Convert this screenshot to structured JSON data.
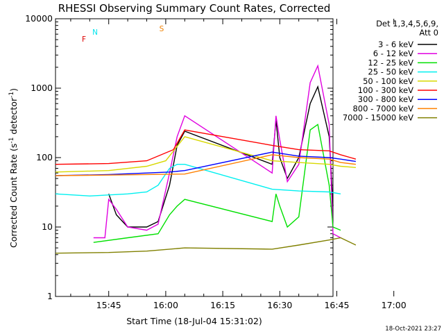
{
  "chart_data": {
    "type": "line",
    "title": "RHESSI Observing Summary Count Rates, Corrected",
    "xlabel": "Start Time (18-Jul-04 15:31:02)",
    "ylabel_main": "Corrected Count Rate (s",
    "ylabel_sup1": "-1",
    "ylabel_mid": " detector",
    "ylabel_sup2": "-1",
    "ylabel_end": ")",
    "yscale": "log",
    "ylim": [
      1,
      10000
    ],
    "y_ticks": [
      {
        "value": 1,
        "label": "1"
      },
      {
        "value": 10,
        "label": "10"
      },
      {
        "value": 100,
        "label": "100"
      },
      {
        "value": 1000,
        "label": "1000"
      },
      {
        "value": 10000,
        "label": "10000"
      }
    ],
    "xlim_min": [
      31.0,
      104.0
    ],
    "x_ticks": [
      {
        "value": 45,
        "label": "15:45"
      },
      {
        "value": 60,
        "label": "16:00"
      },
      {
        "value": 75,
        "label": "16:15"
      },
      {
        "value": 90,
        "label": "16:30"
      },
      {
        "value": 105,
        "label": "16:45"
      },
      {
        "value": 120,
        "label": "17:00"
      }
    ],
    "legend_header_1": "Det 1,3,4,5,6,9,",
    "legend_header_2": "Att 0",
    "legend_position": "right",
    "flags": [
      {
        "label": "N",
        "color": "#00e5ee"
      },
      {
        "label": "F",
        "color": "#dd0000"
      },
      {
        "label": "S",
        "color": "#f08000"
      }
    ],
    "series": [
      {
        "name": "3 - 6 keV",
        "color": "#000000",
        "points": [
          [
            45,
            30
          ],
          [
            47,
            15
          ],
          [
            50,
            10
          ],
          [
            55,
            10
          ],
          [
            58,
            12
          ],
          [
            61,
            40
          ],
          [
            63,
            150
          ],
          [
            65,
            240
          ],
          [
            88,
            80
          ],
          [
            89,
            350
          ],
          [
            90,
            100
          ],
          [
            92,
            50
          ],
          [
            95,
            100
          ],
          [
            98,
            600
          ],
          [
            100,
            1050
          ],
          [
            103,
            200
          ],
          [
            104,
            20
          ]
        ]
      },
      {
        "name": "6 - 12 keV",
        "color": "#e000e0",
        "points": [
          [
            41,
            7
          ],
          [
            44,
            7
          ],
          [
            45,
            25
          ],
          [
            47,
            18
          ],
          [
            50,
            10
          ],
          [
            55,
            9
          ],
          [
            58,
            11
          ],
          [
            61,
            60
          ],
          [
            63,
            200
          ],
          [
            65,
            400
          ],
          [
            88,
            60
          ],
          [
            89,
            400
          ],
          [
            90,
            180
          ],
          [
            92,
            45
          ],
          [
            95,
            80
          ],
          [
            98,
            1200
          ],
          [
            100,
            2100
          ],
          [
            103,
            300
          ],
          [
            104,
            8
          ],
          [
            106,
            7
          ]
        ]
      },
      {
        "name": "12 - 25 keV",
        "color": "#00e000",
        "points": [
          [
            41,
            6
          ],
          [
            50,
            7
          ],
          [
            58,
            8
          ],
          [
            61,
            15
          ],
          [
            63,
            20
          ],
          [
            65,
            25
          ],
          [
            88,
            12
          ],
          [
            89,
            30
          ],
          [
            90,
            20
          ],
          [
            92,
            10
          ],
          [
            95,
            14
          ],
          [
            98,
            250
          ],
          [
            100,
            300
          ],
          [
            103,
            40
          ],
          [
            104,
            10
          ],
          [
            106,
            9
          ]
        ]
      },
      {
        "name": "25 - 50 keV",
        "color": "#00f0f0",
        "points": [
          [
            31,
            30
          ],
          [
            40,
            28
          ],
          [
            50,
            30
          ],
          [
            55,
            32
          ],
          [
            58,
            40
          ],
          [
            61,
            70
          ],
          [
            63,
            80
          ],
          [
            65,
            80
          ],
          [
            88,
            35
          ],
          [
            95,
            33
          ],
          [
            103,
            32
          ],
          [
            106,
            30
          ]
        ]
      },
      {
        "name": "50 - 100 keV",
        "color": "#d8d800",
        "points": [
          [
            31,
            62
          ],
          [
            45,
            65
          ],
          [
            55,
            75
          ],
          [
            60,
            90
          ],
          [
            65,
            200
          ],
          [
            88,
            90
          ],
          [
            95,
            85
          ],
          [
            103,
            80
          ],
          [
            106,
            75
          ],
          [
            110,
            72
          ]
        ]
      },
      {
        "name": "100 - 300 keV",
        "color": "#ff0000",
        "points": [
          [
            31,
            80
          ],
          [
            45,
            82
          ],
          [
            55,
            90
          ],
          [
            62,
            130
          ],
          [
            65,
            250
          ],
          [
            88,
            150
          ],
          [
            95,
            130
          ],
          [
            103,
            125
          ],
          [
            106,
            110
          ],
          [
            110,
            95
          ]
        ]
      },
      {
        "name": "300 - 800 keV",
        "color": "#0000ff",
        "points": [
          [
            31,
            55
          ],
          [
            45,
            57
          ],
          [
            55,
            60
          ],
          [
            61,
            62
          ],
          [
            65,
            65
          ],
          [
            88,
            120
          ],
          [
            95,
            105
          ],
          [
            103,
            100
          ],
          [
            106,
            95
          ],
          [
            110,
            88
          ]
        ]
      },
      {
        "name": "800 - 7000 keV",
        "color": "#ff8000",
        "points": [
          [
            31,
            55
          ],
          [
            45,
            56
          ],
          [
            55,
            57
          ],
          [
            65,
            58
          ],
          [
            88,
            110
          ],
          [
            95,
            100
          ],
          [
            103,
            95
          ],
          [
            106,
            85
          ],
          [
            110,
            80
          ]
        ]
      },
      {
        "name": "7000 - 15000 keV",
        "color": "#808000",
        "points": [
          [
            31,
            4.2
          ],
          [
            45,
            4.3
          ],
          [
            55,
            4.5
          ],
          [
            65,
            5
          ],
          [
            88,
            4.8
          ],
          [
            95,
            5.5
          ],
          [
            103,
            6.5
          ],
          [
            106,
            7
          ],
          [
            110,
            5.5
          ]
        ]
      }
    ],
    "footer_timestamp": "18-Oct-2021 23:27"
  }
}
